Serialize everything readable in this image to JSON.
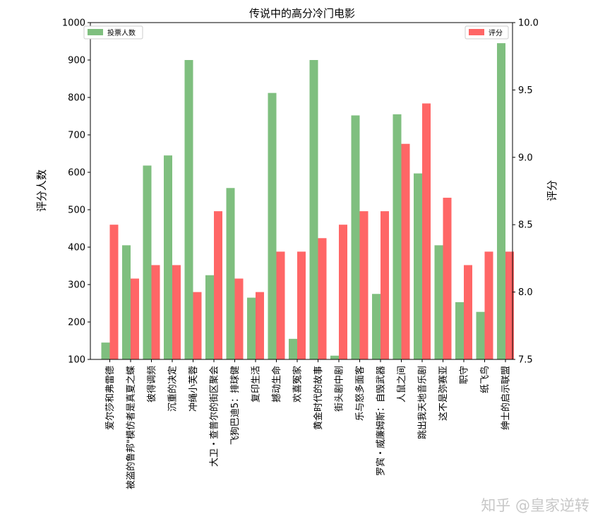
{
  "chart_data": {
    "type": "bar",
    "title": "传说中的高分冷门电影",
    "ylabel_left": "评分人数",
    "ylabel_right": "评分",
    "ylim_left": [
      100,
      1000
    ],
    "ylim_right": [
      7.5,
      10.0
    ],
    "yticks_left": [
      "100",
      "200",
      "300",
      "400",
      "500",
      "600",
      "700",
      "800",
      "900",
      "1000"
    ],
    "yticks_right": [
      "7.5",
      "8.0",
      "8.5",
      "9.0",
      "9.5",
      "10.0"
    ],
    "categories": [
      "爱尔莎和弗雷德",
      "被盗的鲁邦\"模仿者是真夏之蝶",
      "彼得调频",
      "沉重的决定",
      "冲绳小芙蓉",
      "大卫・查普尔的街区聚会",
      "飞狗巴迪5：排球健",
      "复印生活",
      "撼动生命",
      "欢喜冤家",
      "黄金时代的故事",
      "街头剧中剧",
      "乐与怒多面客",
      "罗宾・威廉姆斯：自毁武器",
      "人鼠之间",
      "跳出我天地音乐剧",
      "这不是弥赛亚",
      "职守",
      "纸飞鸟",
      "绅士的启示联盟"
    ],
    "series": [
      {
        "name": "投票人数",
        "axis": "left",
        "color": "#7fbf7f",
        "values": [
          145,
          405,
          618,
          645,
          900,
          325,
          558,
          265,
          812,
          155,
          900,
          110,
          752,
          275,
          755,
          597,
          405,
          253,
          227,
          945
        ]
      },
      {
        "name": "评分",
        "axis": "right",
        "color": "#ff6666",
        "values": [
          8.5,
          8.1,
          8.2,
          8.2,
          8.0,
          8.6,
          8.1,
          8.0,
          8.3,
          8.3,
          8.4,
          8.5,
          8.6,
          8.6,
          9.1,
          9.4,
          8.7,
          8.2,
          8.3,
          8.3
        ]
      }
    ],
    "legend": {
      "left": "top-left",
      "right": "top-right"
    },
    "grid": false
  },
  "watermark": "知乎 @皇家逆转"
}
